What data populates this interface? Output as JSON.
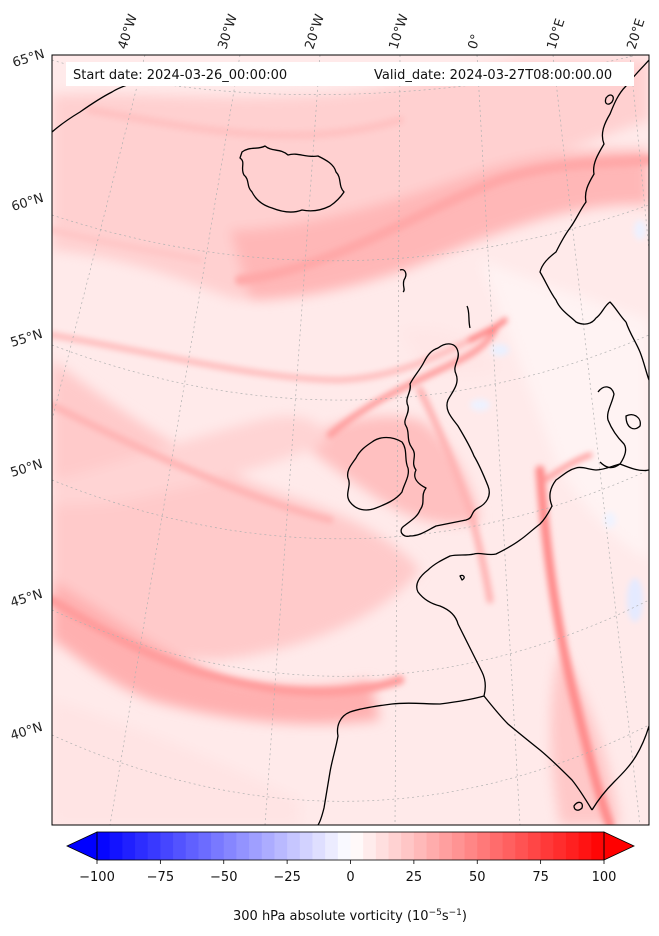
{
  "map": {
    "header": {
      "start_date": "Start date: 2024-03-26_00:00:00",
      "valid_date": "Valid_date: 2024-03-27T08:00:00.00"
    },
    "lon_labels": [
      "40°W",
      "30°W",
      "20°W",
      "10°W",
      "0°",
      "10°E",
      "20°E"
    ],
    "lat_labels": [
      "65°N",
      "60°N",
      "55°N",
      "50°N",
      "45°N",
      "40°N"
    ],
    "colors": {
      "neg_max": "#0000ff",
      "zero": "#ffffff",
      "pos_max": "#ff0000",
      "coast": "#000000"
    }
  },
  "colorbar": {
    "title": "300 hPa absolute vorticity (10",
    "title_exp": "−5",
    "title_mid": "s",
    "title_exp2": "−1",
    "title_end": ")",
    "min": -100,
    "max": 100,
    "tick_labels": [
      "−100",
      "−75",
      "−50",
      "−25",
      "0",
      "25",
      "50",
      "75",
      "100"
    ]
  }
}
